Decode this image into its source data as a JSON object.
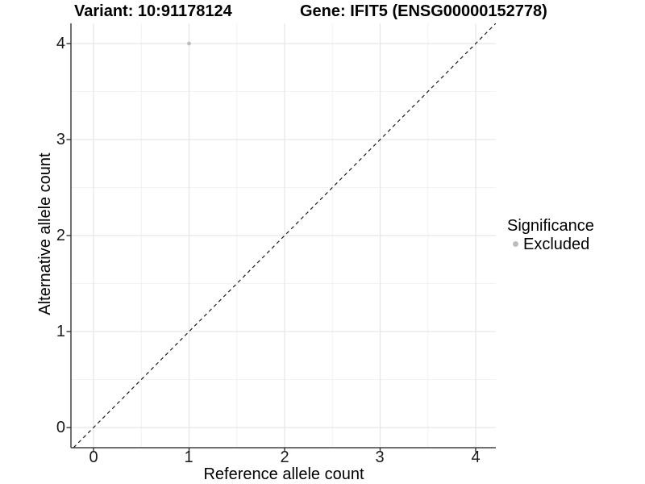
{
  "header": {
    "variant_title": "Variant: 10:91178124",
    "gene_title": "Gene: IFIT5 (ENSG00000152778)"
  },
  "axes": {
    "x": {
      "title": "Reference allele count",
      "ticks": [
        "0",
        "1",
        "2",
        "3",
        "4"
      ]
    },
    "y": {
      "title": "Alternative allele count",
      "ticks": [
        "0",
        "1",
        "2",
        "3",
        "4"
      ]
    }
  },
  "legend": {
    "title": "Significance",
    "items": [
      {
        "label": "Excluded",
        "color": "#bdbdbd"
      }
    ]
  },
  "colors": {
    "background": "#ffffff",
    "grid_major": "#e6e6e6",
    "grid_minor": "#f2f2f2",
    "axis_line": "#404040",
    "tick_mark": "#333333",
    "tick_text": "#1a1a1a",
    "dashed_line": "#1a1a1a",
    "point": "#bdbdbd"
  },
  "chart_data": {
    "type": "scatter",
    "title": "Variant: 10:91178124 | Gene: IFIT5 (ENSG00000152778)",
    "xlabel": "Reference allele count",
    "ylabel": "Alternative allele count",
    "xlim": [
      -0.21,
      4.21
    ],
    "ylim": [
      -0.21,
      4.21
    ],
    "x_ticks": [
      0,
      1,
      2,
      3,
      4
    ],
    "y_ticks": [
      0,
      1,
      2,
      3,
      4
    ],
    "grid": {
      "major": [
        0,
        1,
        2,
        3,
        4
      ],
      "minor": [
        0.5,
        1.5,
        2.5,
        3.5
      ]
    },
    "series": [
      {
        "name": "Excluded",
        "color": "#bdbdbd",
        "point_radius": 2.4,
        "points": [
          {
            "x": 1,
            "y": 4
          }
        ]
      }
    ],
    "reference_line": {
      "type": "identity",
      "slope": 1,
      "intercept": 0,
      "style": "dashed",
      "color": "#1a1a1a"
    },
    "legend_position": "right",
    "legend_title": "Significance"
  }
}
